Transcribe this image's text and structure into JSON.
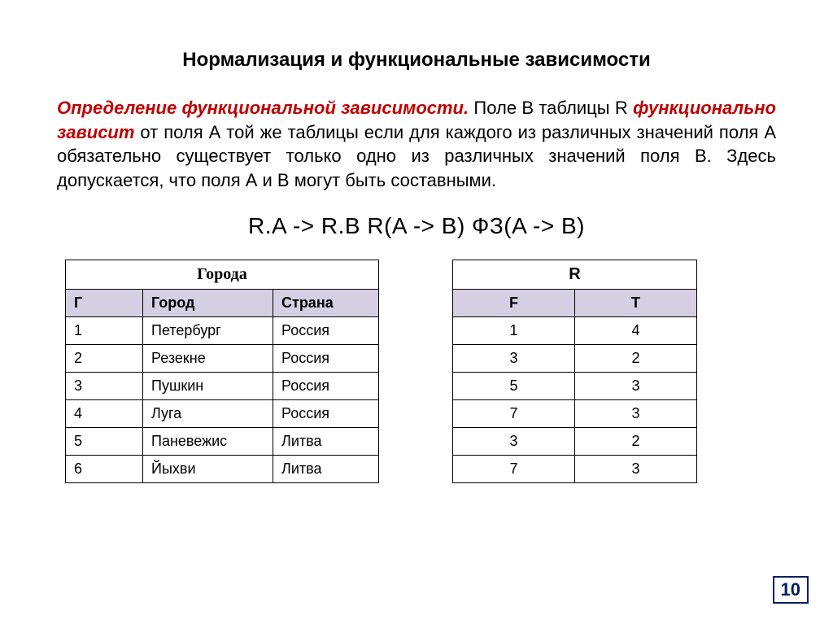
{
  "title": "Нормализация и функциональные зависимости",
  "para": {
    "term1": "Определение функциональной зависимости.",
    "t1": " Поле В таблицы R ",
    "term2": "функционально зависит",
    "t2": " от поля А той же таблицы если для каждого из различных значений поля А обязательно существует только одно из различных значений поля В. Здесь допускается, что поля А и В могут быть составными."
  },
  "formula": "R.A -> R.B     R(A -> B)       ФЗ(A -> B)",
  "table1": {
    "caption": "Города",
    "headers": {
      "c1": "Г",
      "c2": "Город",
      "c3": "Страна"
    },
    "rows": [
      {
        "c1": "1",
        "c2": "Петербург",
        "c3": "Россия"
      },
      {
        "c1": "2",
        "c2": "Резекне",
        "c3": "Россия"
      },
      {
        "c1": "3",
        "c2": "Пушкин",
        "c3": "Россия"
      },
      {
        "c1": "4",
        "c2": "Луга",
        "c3": "Россия"
      },
      {
        "c1": "5",
        "c2": "Паневежис",
        "c3": "Литва"
      },
      {
        "c1": "6",
        "c2": "Йыхви",
        "c3": "Литва"
      }
    ]
  },
  "table2": {
    "caption": "R",
    "headers": {
      "c1": "F",
      "c2": "T"
    },
    "rows": [
      {
        "c1": "1",
        "c2": "4"
      },
      {
        "c1": "3",
        "c2": "2"
      },
      {
        "c1": "5",
        "c2": "3"
      },
      {
        "c1": "7",
        "c2": "3"
      },
      {
        "c1": "3",
        "c2": "2"
      },
      {
        "c1": "7",
        "c2": "3"
      }
    ]
  },
  "pagenum": "10",
  "colors": {
    "header_bg": "#d5cfe3",
    "term_color": "#c00000",
    "pagenum_color": "#002060",
    "background": "#ffffff",
    "border": "#000000"
  },
  "fontsizes": {
    "title": 24,
    "para": 22,
    "formula": 28,
    "table": 18,
    "pagenum": 22
  }
}
